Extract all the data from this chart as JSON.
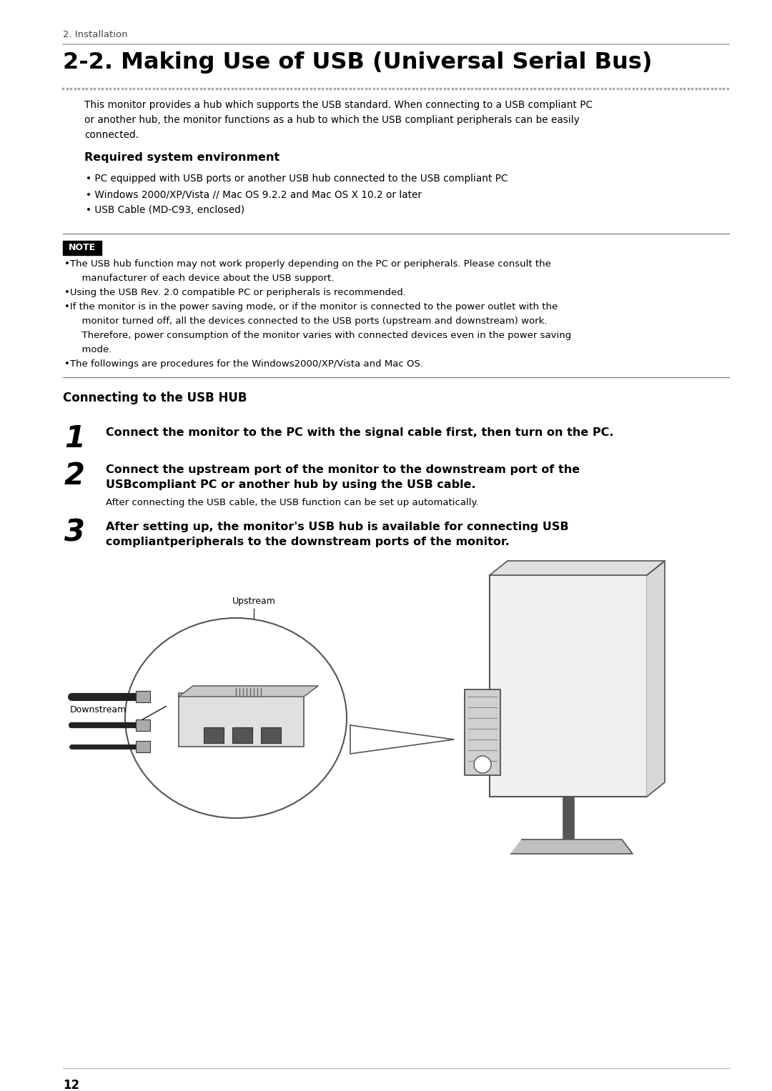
{
  "page_bg": "#ffffff",
  "header_text": "2. Installation",
  "title": "2-2. Making Use of USB (Universal Serial Bus)",
  "intro_text": "This monitor provides a hub which supports the USB standard. When connecting to a USB compliant PC\nor another hub, the monitor functions as a hub to which the USB compliant peripherals can be easily\nconnected.",
  "section1_title": "Required system environment",
  "bullets": [
    "PC equipped with USB ports or another USB hub connected to the USB compliant PC",
    "Windows 2000/XP/Vista // Mac OS 9.2.2 and Mac OS X 10.2 or later",
    "USB Cable (MD-C93, enclosed)"
  ],
  "note_label": "NOTE",
  "note_bullets": [
    "The USB hub function may not work properly depending on the PC or peripherals. Please consult the",
    "  manufacturer of each device about the USB support.",
    "Using the USB Rev. 2.0 compatible PC or peripherals is recommended.",
    "If the monitor is in the power saving mode, or if the monitor is connected to the power outlet with the",
    "  monitor turned off, all the devices connected to the USB ports (upstream and downstream) work.",
    "  Therefore, power consumption of the monitor varies with connected devices even in the power saving",
    "  mode.",
    "The followings are procedures for the Windows2000/XP/Vista and Mac OS."
  ],
  "note_bullet_markers": [
    true,
    false,
    true,
    true,
    false,
    false,
    false,
    true
  ],
  "section2_title": "Connecting to the USB HUB",
  "step1_num": "1",
  "step1_bold": "Connect the monitor to the PC with the signal cable first, then turn on the PC.",
  "step2_num": "2",
  "step2_bold_line1": "Connect the upstream port of the monitor to the downstream port of the",
  "step2_bold_line2": "USBcompliant PC or another hub by using the USB cable.",
  "step2_normal": "After connecting the USB cable, the USB function can be set up automatically.",
  "step3_num": "3",
  "step3_bold_line1": "After setting up, the monitor's USB hub is available for connecting USB",
  "step3_bold_line2": "compliantperipherals to the downstream ports of the monitor.",
  "label_upstream": "Upstream",
  "label_downstream": "Downstream",
  "footer_page": "12",
  "line_color": "#bbbbbb",
  "dot_color": "#999999",
  "note_bg": "#000000",
  "note_fg": "#ffffff"
}
